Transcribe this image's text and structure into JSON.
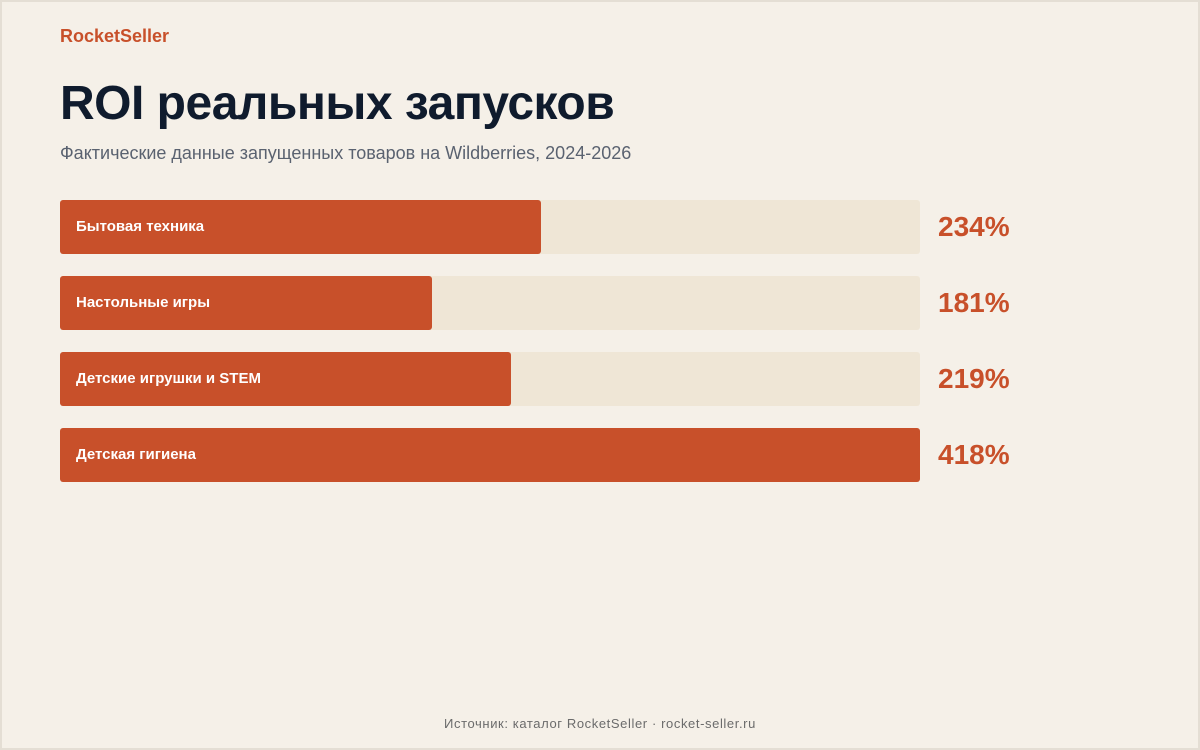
{
  "brand": "RocketSeller",
  "chart_data": {
    "type": "bar",
    "orientation": "horizontal",
    "title": "ROI реальных запусков",
    "subtitle": "Фактические данные запущенных товаров на Wildberries, 2024-2026",
    "categories": [
      "Бытовая техника",
      "Настольные игры",
      "Детские игрушки и STEM",
      "Детская гигиена"
    ],
    "values": [
      234,
      181,
      219,
      418
    ],
    "value_labels": [
      "234%",
      "181%",
      "219%",
      "418%"
    ],
    "unit": "%",
    "xlim": [
      0,
      418
    ],
    "grid": false,
    "legend": "none",
    "colors": {
      "bar": "#c8502a",
      "track": "#efe6d6",
      "value_text": "#c8502a"
    }
  },
  "footer": "Источник: каталог RocketSeller · rocket-seller.ru"
}
